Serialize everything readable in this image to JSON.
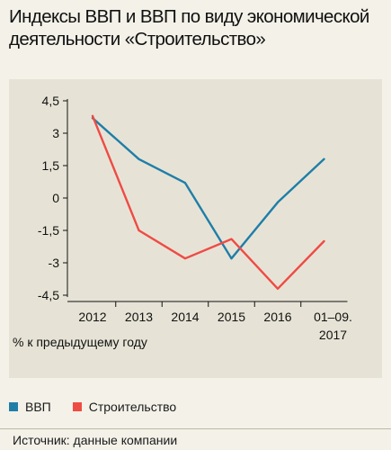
{
  "title": "Индексы ВВП и ВВП по виду экономической деятельности «Строительство»",
  "unit_label": "% к предыдущему году",
  "source": "Источник:  данные компании",
  "colors": {
    "vvp": "#1f7ea8",
    "construction": "#ef4b45",
    "axis": "#111111",
    "tick": "#111111"
  },
  "chart_data": {
    "type": "line",
    "title": "Индексы ВВП и ВВП по виду экономической деятельности «Строительство»",
    "xlabel": "",
    "ylabel": "% к предыдущему году",
    "categories": [
      "2012",
      "2013",
      "2014",
      "2015",
      "2016",
      "01–09. 2017"
    ],
    "ylim": [
      -4.5,
      4.5
    ],
    "yticks": [
      "4,5",
      "3",
      "1,5",
      "0",
      "-1,5",
      "-3",
      "-4,5"
    ],
    "ytick_values": [
      4.5,
      3,
      1.5,
      0,
      -1.5,
      -3,
      -4.5
    ],
    "grid": false,
    "legend": "bottom",
    "series": [
      {
        "name": "ВВП",
        "color": "#1f7ea8",
        "values": [
          3.7,
          1.8,
          0.7,
          -2.8,
          -0.2,
          1.8
        ]
      },
      {
        "name": "Строительство",
        "color": "#ef4b45",
        "values": [
          3.8,
          -1.5,
          -2.8,
          -1.9,
          -4.2,
          -2.0
        ]
      }
    ]
  }
}
